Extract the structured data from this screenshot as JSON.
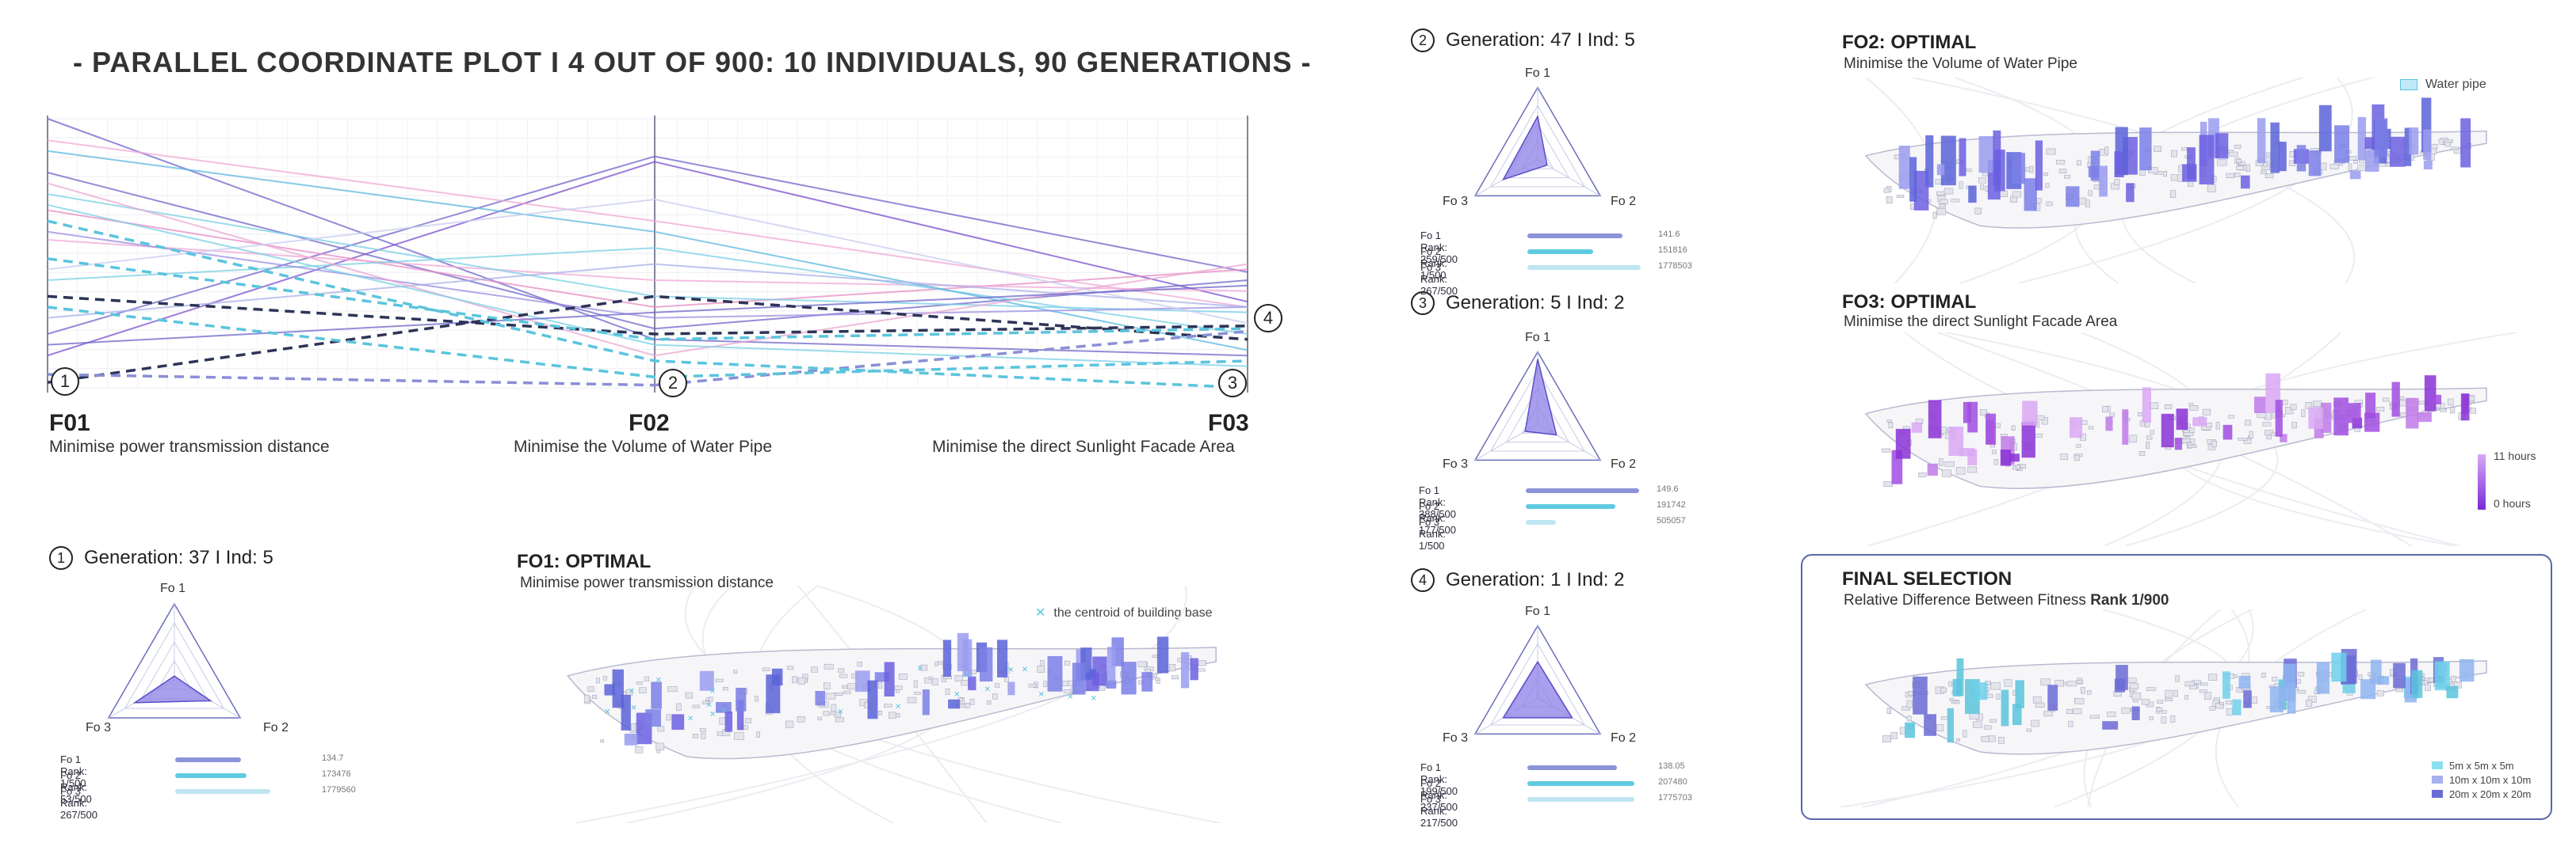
{
  "title": "- PARALLEL COORDINATE PLOT I 4 OUT OF 900: 10 INDIVIDUALS, 90 GENERATIONS -",
  "pcp": {
    "axes": [
      {
        "label": "F01",
        "desc": "Minimise power transmission distance"
      },
      {
        "label": "F02",
        "desc": "Minimise the Volume of Water Pipe"
      },
      {
        "label": "F03",
        "desc": "Minimise the direct Sunlight Facade Area"
      }
    ],
    "markers": [
      "1",
      "2",
      "3",
      "4"
    ]
  },
  "chart_data": {
    "type": "line",
    "title": "- PARALLEL COORDINATE PLOT I 4 OUT OF 900: 10 INDIVIDUALS, 90 GENERATIONS -",
    "categories": [
      "F01",
      "F02",
      "F03"
    ],
    "ylim": [
      0,
      1
    ],
    "grid": true,
    "series": [
      {
        "values": [
          0.02,
          0.34,
          0.18
        ],
        "style": "dashed",
        "color": "#2d3457"
      },
      {
        "values": [
          0.34,
          0.2,
          0.23
        ],
        "style": "dashed",
        "color": "#2d3457"
      },
      {
        "values": [
          0.05,
          0.01,
          0.21
        ],
        "style": "dashed",
        "color": "#8a8fd6"
      },
      {
        "values": [
          0.62,
          0.1,
          0.0
        ],
        "style": "dashed",
        "color": "#5bc4dc"
      },
      {
        "values": [
          0.3,
          0.04,
          0.1
        ],
        "style": "dashed",
        "color": "#5bc4dc"
      },
      {
        "values": [
          0.48,
          0.18,
          0.22
        ],
        "style": "dashed",
        "color": "#5bc4dc"
      },
      {
        "values": [
          1.0,
          0.18,
          0.12
        ],
        "style": "solid",
        "color": "#6f66c9"
      },
      {
        "values": [
          0.2,
          0.86,
          0.43
        ],
        "style": "solid",
        "color": "#6f66c9"
      },
      {
        "values": [
          0.12,
          0.84,
          0.32
        ],
        "style": "solid",
        "color": "#7a4fcf"
      },
      {
        "values": [
          0.8,
          0.22,
          0.4
        ],
        "style": "solid",
        "color": "#6f66c9"
      },
      {
        "values": [
          0.66,
          0.3,
          0.44
        ],
        "style": "solid",
        "color": "#e78cc4"
      },
      {
        "values": [
          0.92,
          0.62,
          0.3
        ],
        "style": "solid",
        "color": "#f0a8d6"
      },
      {
        "values": [
          0.55,
          0.4,
          0.36
        ],
        "style": "solid",
        "color": "#f0a8d6"
      },
      {
        "values": [
          0.72,
          0.34,
          0.28
        ],
        "style": "solid",
        "color": "#78cfe6"
      },
      {
        "values": [
          0.4,
          0.52,
          0.2
        ],
        "style": "solid",
        "color": "#78cfe6"
      },
      {
        "values": [
          0.88,
          0.58,
          0.14
        ],
        "style": "solid",
        "color": "#5bb7e0"
      },
      {
        "values": [
          0.58,
          0.26,
          0.3
        ],
        "style": "solid",
        "color": "#9a8ee0"
      },
      {
        "values": [
          0.26,
          0.46,
          0.3
        ],
        "style": "solid",
        "color": "#a9b0e8"
      },
      {
        "values": [
          0.76,
          0.12,
          0.46
        ],
        "style": "solid",
        "color": "#e9a7d0"
      },
      {
        "values": [
          0.44,
          0.7,
          0.24
        ],
        "style": "solid",
        "color": "#c7ccef"
      },
      {
        "values": [
          0.68,
          0.16,
          0.08
        ],
        "style": "solid",
        "color": "#78cfe6"
      },
      {
        "values": [
          0.16,
          0.28,
          0.38
        ],
        "style": "solid",
        "color": "#6f66c9"
      }
    ]
  },
  "individuals": [
    {
      "num": "1",
      "gen_text": "Generation: 37 I Ind: 5",
      "radar_labels": [
        "Fo 1",
        "Fo 2",
        "Fo 3"
      ],
      "radar_values": [
        0.05,
        0.55,
        0.6
      ],
      "ranks": [
        {
          "label": "Fo 1 Rank: 1/500",
          "value": "134.7",
          "fill": 0.55,
          "color": "#8d93d8"
        },
        {
          "label": "Fo 2 Rank: 53/500",
          "value": "173476",
          "fill": 0.6,
          "color": "#5fcbe0"
        },
        {
          "label": "Fo 3 Rank: 267/500",
          "value": "1779560",
          "fill": 0.8,
          "color": "#bfe6f2"
        }
      ]
    },
    {
      "num": "2",
      "gen_text": "Generation: 47 I Ind: 5",
      "radar_labels": [
        "Fo 1",
        "Fo 2",
        "Fo 3"
      ],
      "radar_values": [
        0.6,
        0.15,
        0.55
      ],
      "ranks": [
        {
          "label": "Fo 1 Rank: 259/500",
          "value": "141.6",
          "fill": 0.8,
          "color": "#8d93d8"
        },
        {
          "label": "Fo 2 Rank: 1/500",
          "value": "151816",
          "fill": 0.55,
          "color": "#5fcbe0"
        },
        {
          "label": "Fo 3 Rank: 267/500",
          "value": "1778503",
          "fill": 0.95,
          "color": "#bfe6f2"
        }
      ]
    },
    {
      "num": "3",
      "gen_text": "Generation: 5 I Ind: 2",
      "radar_labels": [
        "Fo 1",
        "Fo 2",
        "Fo 3"
      ],
      "radar_values": [
        0.9,
        0.3,
        0.2
      ],
      "ranks": [
        {
          "label": "Fo 1 Rank: 388/500",
          "value": "149.6",
          "fill": 0.95,
          "color": "#8d93d8"
        },
        {
          "label": "Fo 2 Rank: 177/500",
          "value": "191742",
          "fill": 0.75,
          "color": "#5fcbe0"
        },
        {
          "label": "Fo 3 Rank: 1/500",
          "value": "505057",
          "fill": 0.25,
          "color": "#bfe6f2"
        }
      ]
    },
    {
      "num": "4",
      "gen_text": "Generation: 1 I Ind: 2",
      "radar_labels": [
        "Fo 1",
        "Fo 2",
        "Fo 3"
      ],
      "radar_values": [
        0.5,
        0.55,
        0.55
      ],
      "ranks": [
        {
          "label": "Fo 1 Rank: 199/500",
          "value": "138.05",
          "fill": 0.75,
          "color": "#8d93d8"
        },
        {
          "label": "Fo 2 Rank: 237/500",
          "value": "207480",
          "fill": 0.9,
          "color": "#5fcbe0"
        },
        {
          "label": "Fo 3 Rank: 217/500",
          "value": "1775703",
          "fill": 0.9,
          "color": "#bfe6f2"
        }
      ]
    }
  ],
  "maps": {
    "fo1": {
      "title": "FO1: OPTIMAL",
      "subtitle": "Minimise power transmission distance",
      "legend": "the centroid of building base",
      "legend_icon": "cross-marker-icon"
    },
    "fo2": {
      "title": "FO2: OPTIMAL",
      "subtitle": "Minimise the Volume of Water Pipe",
      "legend": "Water pipe"
    },
    "fo3": {
      "title": "FO3: OPTIMAL",
      "subtitle": "Minimise the direct Sunlight Facade Area",
      "legend_high": "11 hours",
      "legend_low": "0 hours"
    },
    "final": {
      "title": "FINAL SELECTION",
      "subtitle_plain": "Relative Difference Between Fitness ",
      "subtitle_bold": "Rank 1/900",
      "legend": [
        "5m x 5m x 5m",
        "10m x 10m x 10m",
        "20m x 20m x 20m"
      ]
    }
  },
  "colors": {
    "accent_purple": "#7b6fe0",
    "accent_cyan": "#5bc4dc",
    "dark_navy": "#2d3457",
    "pink": "#f0a8d6",
    "heat_purple": "#a04ee0"
  }
}
